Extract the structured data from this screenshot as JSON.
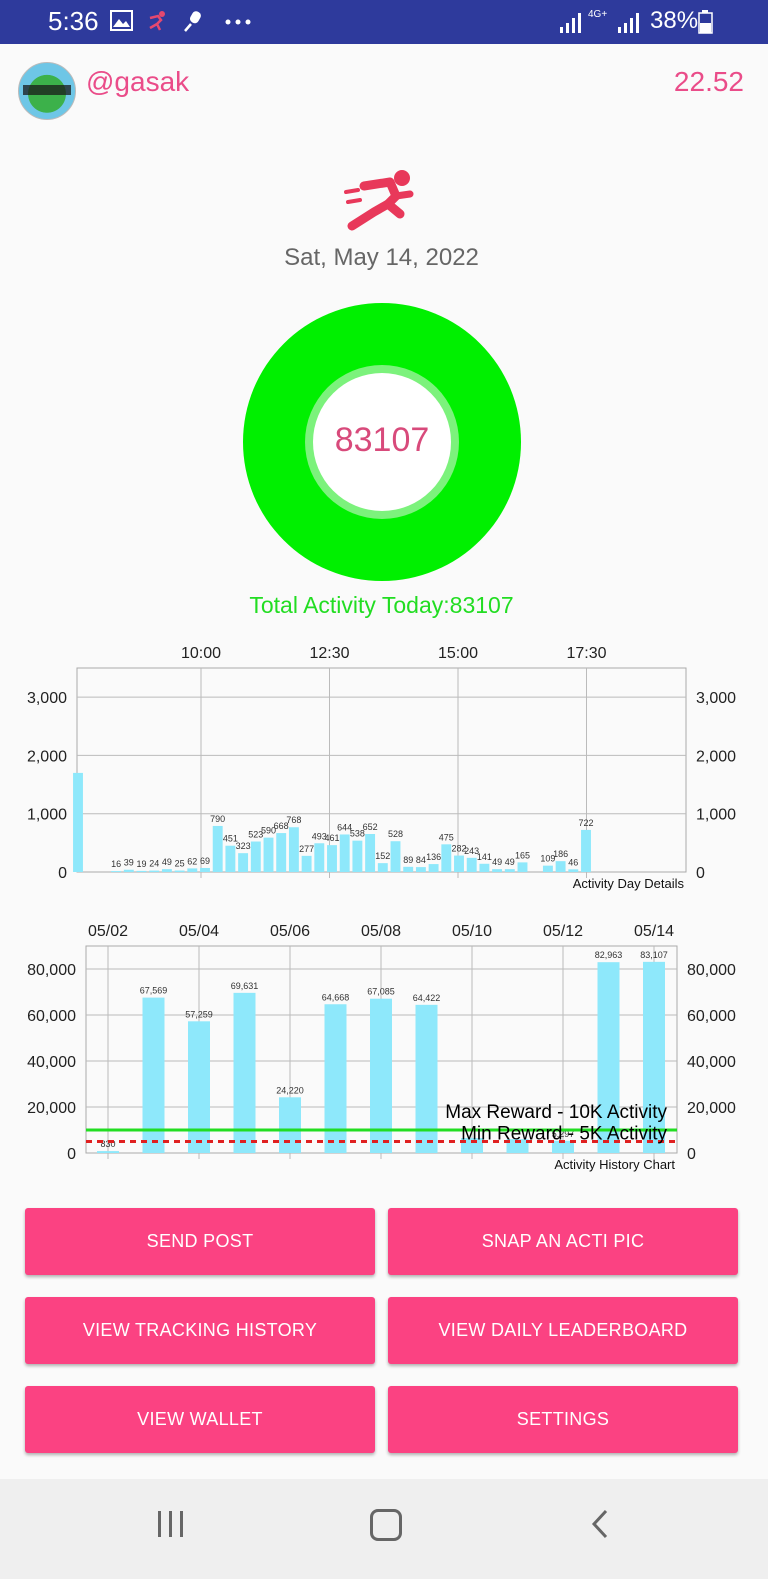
{
  "status_bar": {
    "time": "5:36",
    "network": "4G+",
    "battery": "38%",
    "icons": [
      "gallery-icon",
      "runner-notification-icon",
      "mic-icon",
      "more-icon",
      "signal-icon",
      "signal-icon",
      "battery-icon"
    ]
  },
  "header": {
    "username": "@gasak",
    "balance": "22.52"
  },
  "main": {
    "date": "Sat, May 14, 2022",
    "ring_value": "83107",
    "total_activity": "Total Activity Today:83107",
    "accent_color": "#fb4282",
    "ring_color": "#00f000"
  },
  "chart_data": [
    {
      "type": "bar",
      "description_label": "Activity Day Details",
      "x_ticks": [
        "10:00",
        "12:30",
        "15:00",
        "17:30"
      ],
      "y_ticks": [
        "0",
        "1,000",
        "2,000",
        "3,000"
      ],
      "ylim": [
        0,
        3500
      ],
      "grid": true,
      "bar_color": "#8ee8fb",
      "values": [
        1700,
        0,
        0,
        16,
        39,
        19,
        24,
        49,
        25,
        62,
        69,
        790,
        451,
        323,
        523,
        590,
        668,
        768,
        277,
        493,
        461,
        644,
        538,
        652,
        152,
        528,
        89,
        84,
        136,
        475,
        282,
        243,
        141,
        49,
        49,
        165,
        0,
        109,
        186,
        46,
        722
      ],
      "labels": [
        "",
        "",
        "",
        "16",
        "39",
        "19",
        "24",
        "49",
        "25",
        "62",
        "69",
        "790",
        "451",
        "323",
        "523",
        "590",
        "668",
        "768",
        "277",
        "493",
        "461",
        "644",
        "538",
        "652",
        "152",
        "528",
        "89",
        "84",
        "136",
        "475",
        "282",
        "243",
        "141",
        "49",
        "49",
        "165",
        "",
        "109",
        "186",
        "46",
        "722"
      ]
    },
    {
      "type": "bar",
      "description_label": "Activity History Chart",
      "x_ticks": [
        "05/02",
        "05/04",
        "05/06",
        "05/08",
        "05/10",
        "05/12",
        "05/14"
      ],
      "y_ticks": [
        "0",
        "20,000",
        "40,000",
        "60,000",
        "80,000"
      ],
      "ylim": [
        0,
        90000
      ],
      "grid": true,
      "bar_color": "#8ee8fb",
      "values": [
        830,
        67569,
        57259,
        69631,
        24220,
        64668,
        67085,
        64422,
        6500,
        6000,
        5297,
        82963,
        83107
      ],
      "labels": [
        "830",
        "67,569",
        "57,259",
        "69,631",
        "24,220",
        "64,668",
        "67,085",
        "64,422",
        "",
        "",
        "5,297",
        "82,963",
        "83,107"
      ],
      "limit_lines": [
        {
          "label": "Max Reward - 10K Activity",
          "value": 10000,
          "color": "#22dd22",
          "style": "solid"
        },
        {
          "label": "Min Reward - 5K Activity",
          "value": 5000,
          "color": "#e02020",
          "style": "dashed"
        }
      ]
    }
  ],
  "buttons": {
    "send_post": "SEND POST",
    "snap_pic": "SNAP AN ACTI PIC",
    "tracking_history": "VIEW TRACKING HISTORY",
    "daily_leaderboard": "VIEW DAILY LEADERBOARD",
    "wallet": "VIEW WALLET",
    "settings": "SETTINGS"
  }
}
